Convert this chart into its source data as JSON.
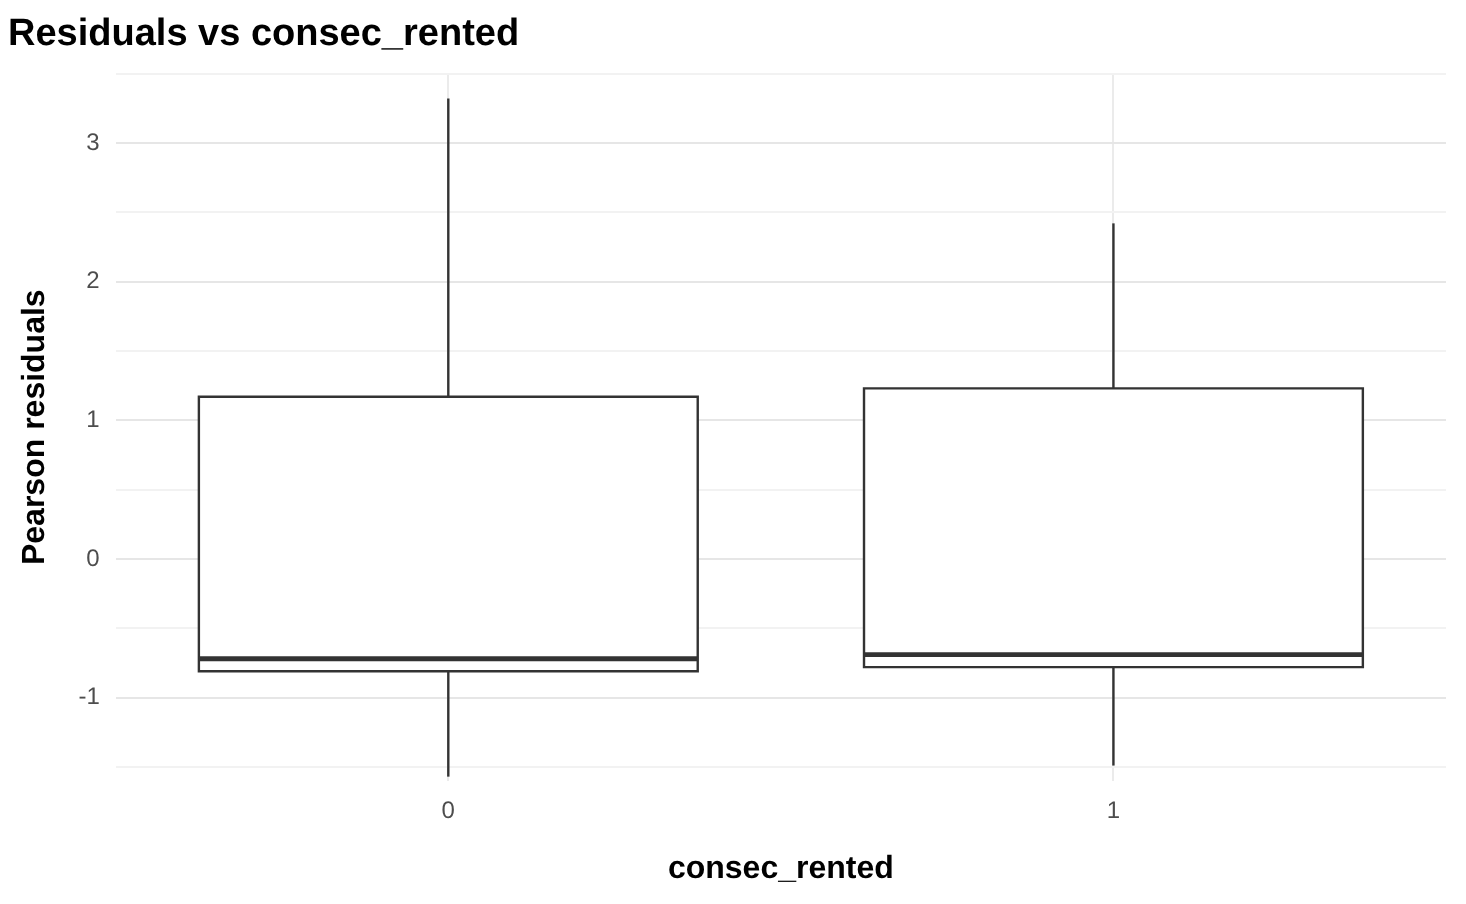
{
  "chart_data": {
    "type": "box",
    "title": "Residuals vs consec_rented",
    "xlabel": "consec_rented",
    "ylabel": "Pearson residuals",
    "categories": [
      "0",
      "1"
    ],
    "boxes": [
      {
        "low": -1.57,
        "q1": -0.81,
        "median": -0.72,
        "q3": 1.17,
        "high": 3.32
      },
      {
        "low": -1.49,
        "q1": -0.78,
        "median": -0.69,
        "q3": 1.23,
        "high": 2.42
      }
    ],
    "ylim": [
      -1.6,
      3.5
    ],
    "yticks": [
      {
        "value": -1.5,
        "label": null
      },
      -1,
      {
        "value": -0.5,
        "label": null
      },
      0,
      {
        "value": 0.5,
        "label": null
      },
      1,
      {
        "value": 1.5,
        "label": null
      },
      2,
      {
        "value": 2.5,
        "label": null
      },
      3,
      {
        "value": 3.5,
        "label": null
      }
    ],
    "grid": true,
    "legend": false
  }
}
